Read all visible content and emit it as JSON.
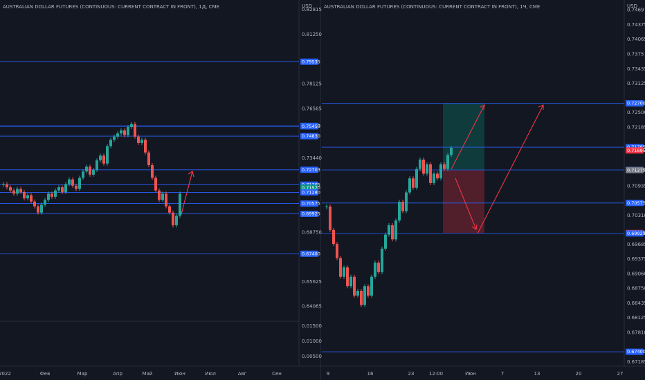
{
  "left": {
    "title": "AUSTRALIAN DOLLAR FUTURES (CONTINUOUS: CURRENT CONTRACT IN FRONT), 1Д, CME",
    "currency": "USD",
    "price_labels": [
      0.82815,
      {
        "value": 0.8125,
        "label": "0.81250"
      },
      0.78125,
      0.76565,
      {
        "value": 0.7344,
        "label": "0.73440"
      },
      {
        "value": 0.6875,
        "label": "0.68750"
      },
      0.65625,
      0.64065
    ],
    "tags": [
      {
        "value": 0.79535,
        "label": "0.79535",
        "color": "#2962ff"
      },
      {
        "value": 0.7548,
        "label": "0.75480",
        "color": "#2962ff"
      },
      {
        "value": 0.7545,
        "label": "0.75450",
        "color": "#2962ff"
      },
      {
        "value": 0.7483,
        "label": "0.74830",
        "color": "#2962ff"
      },
      {
        "value": 0.72703,
        "label": "0.72703",
        "color": "#2962ff"
      },
      {
        "value": 0.71765,
        "label": "0.71765",
        "color": "#2962ff"
      },
      {
        "value": 0.7157,
        "label": "0.71570",
        "color": "#089981"
      },
      {
        "value": 0.7128,
        "label": "0.71280",
        "color": "#2962ff"
      },
      {
        "value": 0.70575,
        "label": "0.70575",
        "color": "#2962ff"
      },
      {
        "value": 0.69925,
        "label": "0.69925",
        "color": "#2962ff"
      },
      {
        "value": 0.674,
        "label": "0.67400",
        "color": "#2962ff"
      }
    ],
    "indicator_labels": [
      {
        "value": 0.015,
        "label": "0.01500"
      },
      {
        "value": 0.01,
        "label": "0.01000"
      },
      {
        "value": 0.005,
        "label": "0.00500"
      }
    ],
    "time_labels": [
      "2022",
      "Фев",
      "Мар",
      "Апр",
      "Май",
      "Июн",
      "Июл",
      "Авг",
      "Сен"
    ],
    "closes": [
      0.718,
      0.716,
      0.714,
      0.712,
      0.715,
      0.713,
      0.709,
      0.711,
      0.707,
      0.704,
      0.7,
      0.705,
      0.708,
      0.712,
      0.71,
      0.714,
      0.716,
      0.713,
      0.718,
      0.721,
      0.717,
      0.715,
      0.722,
      0.726,
      0.729,
      0.724,
      0.727,
      0.733,
      0.736,
      0.731,
      0.742,
      0.746,
      0.748,
      0.75,
      0.752,
      0.749,
      0.754,
      0.756,
      0.748,
      0.744,
      0.746,
      0.738,
      0.73,
      0.722,
      0.714,
      0.708,
      0.712,
      0.704,
      0.7,
      0.692,
      0.698,
      0.712
    ]
  },
  "right": {
    "title": "AUSTRALIAN DOLLAR FUTURES (CONTINUOUS: CURRENT CONTRACT IN FRONT), 1Ч, CME",
    "currency": "USD",
    "price_labels": [
      0.7469,
      0.74375,
      0.74065,
      0.7375,
      0.73435,
      0.73125,
      {
        "value": 0.725,
        "label": "0.72500"
      },
      0.72185,
      0.70935,
      {
        "value": 0.7031,
        "label": "0.70310"
      },
      0.69685,
      0.69375,
      {
        "value": 0.6906,
        "label": "0.69060"
      },
      {
        "value": 0.6875,
        "label": "0.68750"
      },
      0.68435,
      0.68125,
      {
        "value": 0.6781,
        "label": "0.67810"
      },
      0.67185
    ],
    "tags": [
      {
        "value": 0.727,
        "label": "0.72700",
        "color": "#089981"
      },
      {
        "value": 0.727,
        "label": "0.72700",
        "color": "#2962ff"
      },
      {
        "value": 0.71765,
        "label": "0.71765",
        "color": "#2962ff"
      },
      {
        "value": 0.71695,
        "label": "0.71695",
        "color": "#f23645"
      },
      {
        "value": 0.7128,
        "label": "0.71280",
        "color": "#2962ff"
      },
      {
        "value": 0.71275,
        "label": "0.71275",
        "color": "#787b86"
      },
      {
        "value": 0.70575,
        "label": "0.70575",
        "color": "#2962ff"
      },
      {
        "value": 0.69935,
        "label": "0.69935",
        "color": "#f23645"
      },
      {
        "value": 0.69925,
        "label": "0.69925",
        "color": "#2962ff"
      },
      {
        "value": 0.674,
        "label": "0.67400",
        "color": "#2962ff"
      }
    ],
    "time_labels": [
      "9",
      "16",
      "23",
      "12:00",
      "Июн",
      "7",
      "13",
      "20",
      "27"
    ],
    "closes": [
      0.705,
      0.7,
      0.697,
      0.694,
      0.69,
      0.692,
      0.688,
      0.69,
      0.686,
      0.687,
      0.684,
      0.688,
      0.686,
      0.69,
      0.693,
      0.691,
      0.696,
      0.699,
      0.701,
      0.698,
      0.702,
      0.706,
      0.704,
      0.708,
      0.711,
      0.709,
      0.713,
      0.715,
      0.712,
      0.714,
      0.71,
      0.712,
      0.711,
      0.714,
      0.713,
      0.716,
      0.7175
    ]
  }
}
